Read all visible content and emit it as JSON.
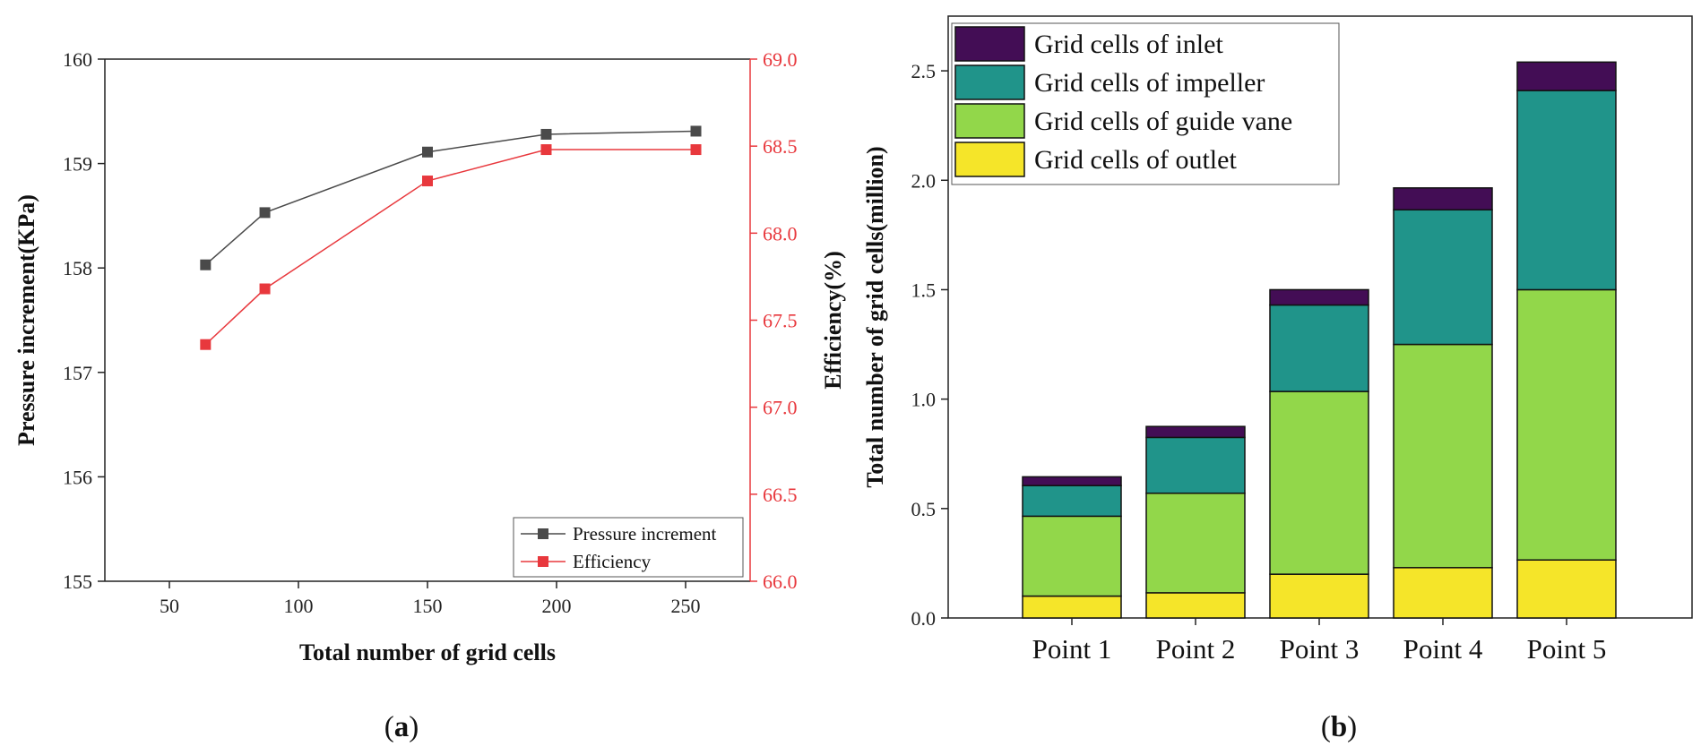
{
  "chart_data": [
    {
      "type": "line",
      "panel": "a",
      "xlabel": "Total number of grid cells",
      "ylabel": "Pressure increment(KPa)",
      "y2label": "Efficiency(%)",
      "xlim": [
        25,
        275
      ],
      "xticks": [
        50,
        100,
        150,
        200,
        250
      ],
      "ylim": [
        155,
        160
      ],
      "yticks": [
        155,
        156,
        157,
        158,
        159,
        160
      ],
      "y2lim": [
        66.0,
        69.0
      ],
      "y2ticks": [
        "66.0",
        "66.5",
        "67.0",
        "67.5",
        "68.0",
        "68.5",
        "69.0"
      ],
      "x": [
        64,
        87,
        150,
        196,
        254
      ],
      "series": [
        {
          "name": "Pressure increment",
          "axis": "left",
          "color": "#4a4a4a",
          "values": [
            158.03,
            158.53,
            159.11,
            159.28,
            159.31
          ]
        },
        {
          "name": "Efficiency",
          "axis": "right",
          "color": "#e8383d",
          "values": [
            67.36,
            67.68,
            68.3,
            68.48,
            68.48
          ]
        }
      ]
    },
    {
      "type": "bar",
      "stacked": true,
      "panel": "b",
      "ylabel": "Total number of grid cells(million)",
      "ylim": [
        0,
        2.75
      ],
      "yticks": [
        "0.0",
        "0.5",
        "1.0",
        "1.5",
        "2.0",
        "2.5"
      ],
      "categories": [
        "Point 1",
        "Point 2",
        "Point 3",
        "Point 4",
        "Point 5"
      ],
      "series": [
        {
          "name": "Grid cells of outlet",
          "color": "#f5e529",
          "values": [
            0.1,
            0.115,
            0.2,
            0.23,
            0.265
          ]
        },
        {
          "name": "Grid cells of guide vane",
          "color": "#92d74a",
          "values": [
            0.365,
            0.455,
            0.835,
            1.02,
            1.235
          ]
        },
        {
          "name": "Grid cells of impeller",
          "color": "#20948a",
          "values": [
            0.14,
            0.255,
            0.395,
            0.615,
            0.91
          ]
        },
        {
          "name": "Grid cells of inlet",
          "color": "#430d55",
          "values": [
            0.04,
            0.05,
            0.07,
            0.1,
            0.13
          ]
        }
      ],
      "legend_order": [
        "Grid cells of inlet",
        "Grid cells of impeller",
        "Grid cells of guide vane",
        "Grid cells of outlet"
      ]
    }
  ],
  "panel_labels": {
    "a": "a",
    "b": "b"
  }
}
